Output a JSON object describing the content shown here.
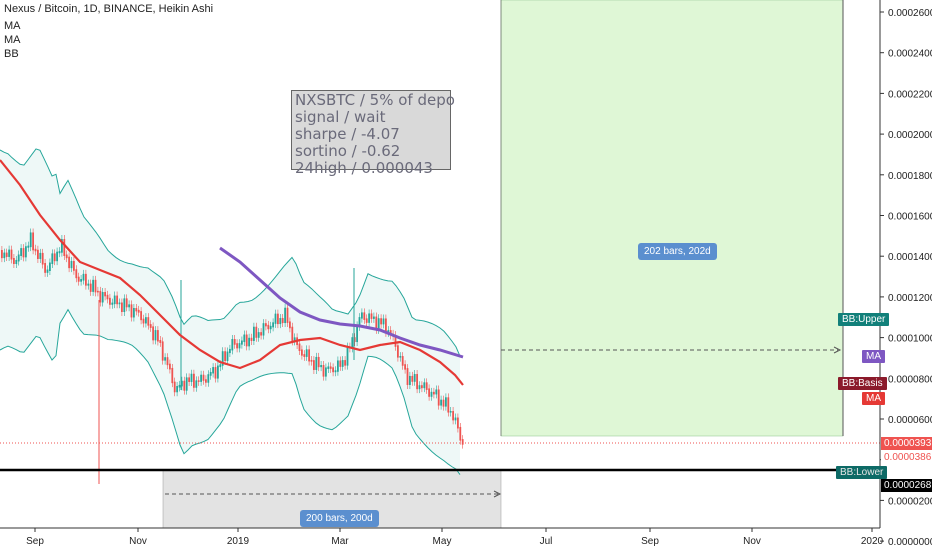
{
  "legend": {
    "title": "Nexus / Bitcoin, 1D, BINANCE, Heikin Ashi",
    "items": [
      "MA",
      "MA",
      "BB"
    ]
  },
  "info_box": {
    "lines": [
      "NXSBTC / 5% of depo",
      "signal / wait",
      "sharpe / -4.07",
      "sortino / -0.62",
      "24high / 0.000043"
    ]
  },
  "price_axis": {
    "ticks": [
      "0.0002600",
      "0.0002400",
      "0.0002200",
      "0.0002000",
      "0.0001800",
      "0.0001600",
      "0.0001400",
      "0.0001200",
      "0.0001000",
      "0.0000800",
      "0.0000600",
      "0.0000400",
      "0.0000200",
      "0.0000000"
    ],
    "last_price": "0.0000393",
    "prev_price": "0.0000386",
    "level_price": "0.0000268"
  },
  "time_axis": {
    "ticks": [
      "Sep",
      "Nov",
      "2019",
      "Mar",
      "May",
      "Jul",
      "Sep",
      "Nov",
      "2020"
    ]
  },
  "tags": {
    "bb_upper": "BB:Upper",
    "ma_purple": "MA",
    "bb_basis": "BB:Basis",
    "ma_red": "MA",
    "bb_lower": "BB:Lower"
  },
  "measures": {
    "forward": "202 bars, 202d",
    "backward": "200 bars, 200d"
  },
  "colors": {
    "up": "#26a69a",
    "down": "#ef5350",
    "ma_red": "#e53935",
    "ma_purple": "#7e57c2",
    "bb_line": "#26a69a",
    "bb_fill": "#eef8f7",
    "green_zone": "#dff7d6",
    "grey_zone": "#e3e3e3"
  }
}
